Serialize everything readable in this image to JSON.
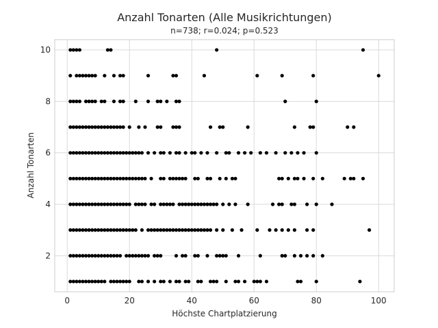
{
  "chart_data": {
    "type": "scatter",
    "title": "Anzahl Tonarten (Alle Musikrichtungen)",
    "subtitle": "n=738; r=0.024; p=0.523",
    "xlabel": "Höchste Chartplatzierung",
    "ylabel": "Anzahl Tonarten",
    "xlim": [
      -4,
      105
    ],
    "ylim": [
      0.6,
      10.4
    ],
    "xticks": [
      0,
      20,
      40,
      60,
      80,
      100
    ],
    "yticks": [
      2,
      4,
      6,
      8,
      10
    ],
    "grid": true,
    "legend": "none",
    "point_color": "#000000",
    "rows": [
      {
        "y": 10,
        "x": [
          1,
          2,
          3,
          4,
          13,
          14,
          48,
          95
        ]
      },
      {
        "y": 9,
        "x": [
          1,
          3,
          4,
          5,
          6,
          7,
          8,
          9,
          12,
          15,
          17,
          18,
          26,
          34,
          35,
          44,
          61,
          69,
          79,
          100
        ]
      },
      {
        "y": 8,
        "x": [
          1,
          2,
          3,
          4,
          6,
          7,
          8,
          9,
          11,
          12,
          15,
          17,
          18,
          22,
          26,
          29,
          30,
          32,
          35,
          36,
          70,
          80
        ]
      },
      {
        "y": 7,
        "x": [
          1,
          2,
          3,
          4,
          5,
          6,
          7,
          8,
          9,
          10,
          11,
          12,
          13,
          14,
          15,
          16,
          17,
          18,
          20,
          23,
          25,
          29,
          30,
          34,
          35,
          36,
          46,
          49,
          50,
          58,
          73,
          78,
          79,
          90,
          92
        ]
      },
      {
        "y": 6,
        "x": [
          1,
          2,
          3,
          4,
          5,
          6,
          7,
          8,
          9,
          10,
          11,
          12,
          13,
          14,
          15,
          16,
          17,
          18,
          19,
          20,
          21,
          22,
          23,
          24,
          26,
          28,
          30,
          31,
          33,
          35,
          36,
          38,
          40,
          41,
          43,
          45,
          48,
          51,
          52,
          55,
          57,
          59,
          62,
          64,
          67,
          70,
          72,
          74,
          76,
          80
        ]
      },
      {
        "y": 5,
        "x": [
          1,
          2,
          3,
          4,
          5,
          6,
          7,
          8,
          9,
          10,
          11,
          12,
          13,
          14,
          15,
          16,
          17,
          18,
          19,
          20,
          21,
          22,
          23,
          24,
          25,
          27,
          30,
          31,
          33,
          34,
          35,
          36,
          37,
          38,
          41,
          42,
          45,
          46,
          49,
          51,
          53,
          54,
          68,
          69,
          71,
          73,
          74,
          76,
          79,
          82,
          89,
          91,
          92,
          95
        ]
      },
      {
        "y": 4,
        "x": [
          1,
          2,
          3,
          4,
          5,
          6,
          7,
          8,
          9,
          10,
          11,
          12,
          13,
          14,
          15,
          16,
          17,
          18,
          19,
          20,
          22,
          23,
          24,
          25,
          27,
          28,
          30,
          31,
          32,
          33,
          34,
          36,
          37,
          38,
          39,
          40,
          41,
          42,
          43,
          44,
          45,
          46,
          47,
          48,
          50,
          52,
          54,
          58,
          66,
          68,
          69,
          72,
          73,
          77,
          80,
          85
        ]
      },
      {
        "y": 3,
        "x": [
          1,
          2,
          3,
          4,
          5,
          6,
          7,
          8,
          9,
          10,
          11,
          12,
          13,
          14,
          15,
          16,
          17,
          18,
          19,
          20,
          21,
          22,
          24,
          26,
          27,
          28,
          29,
          30,
          31,
          32,
          33,
          34,
          35,
          36,
          37,
          38,
          39,
          40,
          41,
          42,
          43,
          44,
          45,
          46,
          48,
          50,
          53,
          56,
          61,
          65,
          67,
          69,
          71,
          73,
          77,
          79,
          97
        ]
      },
      {
        "y": 2,
        "x": [
          1,
          2,
          3,
          4,
          5,
          6,
          7,
          8,
          9,
          10,
          11,
          12,
          13,
          14,
          15,
          16,
          17,
          19,
          20,
          21,
          22,
          23,
          24,
          25,
          26,
          28,
          29,
          30,
          35,
          37,
          38,
          41,
          42,
          45,
          48,
          49,
          50,
          51,
          55,
          62,
          69,
          70,
          73,
          75,
          77,
          79,
          82
        ]
      },
      {
        "y": 1,
        "x": [
          1,
          2,
          3,
          4,
          5,
          6,
          7,
          8,
          9,
          10,
          11,
          12,
          14,
          15,
          16,
          17,
          18,
          19,
          20,
          23,
          24,
          26,
          28,
          30,
          31,
          33,
          35,
          36,
          38,
          39,
          42,
          43,
          46,
          47,
          48,
          51,
          54,
          55,
          57,
          60,
          61,
          62,
          64,
          74,
          75,
          80,
          94
        ]
      }
    ]
  }
}
